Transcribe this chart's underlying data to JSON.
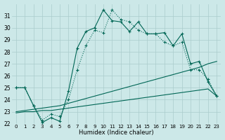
{
  "xlabel": "Humidex (Indice chaleur)",
  "background_color": "#cce8e8",
  "grid_color": "#aacccc",
  "line_color": "#006655",
  "x_values": [
    0,
    1,
    2,
    3,
    4,
    5,
    6,
    7,
    8,
    9,
    10,
    11,
    12,
    13,
    14,
    15,
    16,
    17,
    18,
    19,
    20,
    21,
    22,
    23
  ],
  "line1": [
    25.0,
    25.0,
    23.5,
    22.1,
    22.5,
    22.2,
    24.7,
    28.3,
    29.7,
    30.0,
    31.5,
    30.6,
    30.5,
    29.7,
    30.5,
    29.5,
    29.5,
    29.6,
    28.5,
    29.5,
    27.0,
    27.2,
    25.5,
    24.3
  ],
  "line1_markers": [
    2,
    3,
    4,
    5,
    6,
    7,
    8,
    9,
    10,
    11,
    12,
    13,
    14,
    15,
    16,
    17,
    18,
    19,
    20,
    21,
    22,
    23
  ],
  "line2": [
    25.0,
    25.0,
    23.5,
    22.3,
    22.8,
    22.6,
    24.0,
    26.5,
    28.5,
    29.8,
    29.6,
    31.5,
    30.7,
    30.5,
    29.8,
    29.5,
    29.5,
    28.8,
    28.5,
    28.8,
    26.5,
    26.5,
    25.7,
    24.3
  ],
  "line2_markers": [
    2,
    3,
    4,
    5,
    6,
    7,
    8,
    9,
    10,
    11,
    12,
    13,
    14,
    15,
    16,
    17,
    18,
    19,
    20,
    21,
    22,
    23
  ],
  "line3": [
    23.0,
    23.1,
    23.2,
    23.3,
    23.4,
    23.5,
    23.7,
    23.9,
    24.1,
    24.3,
    24.5,
    24.7,
    24.9,
    25.1,
    25.3,
    25.5,
    25.7,
    25.9,
    26.1,
    26.3,
    26.5,
    26.7,
    27.0,
    27.2
  ],
  "line4": [
    22.9,
    23.0,
    23.0,
    23.1,
    23.1,
    23.2,
    23.3,
    23.4,
    23.5,
    23.6,
    23.7,
    23.8,
    23.9,
    24.0,
    24.1,
    24.2,
    24.3,
    24.4,
    24.5,
    24.6,
    24.7,
    24.8,
    24.9,
    24.3
  ],
  "ylim": [
    22,
    32
  ],
  "xlim": [
    -0.5,
    23.5
  ],
  "yticks": [
    22,
    23,
    24,
    25,
    26,
    27,
    28,
    29,
    30,
    31
  ],
  "xticks": [
    0,
    1,
    2,
    3,
    4,
    5,
    6,
    7,
    8,
    9,
    10,
    11,
    12,
    13,
    14,
    15,
    16,
    17,
    18,
    19,
    20,
    21,
    22,
    23
  ]
}
